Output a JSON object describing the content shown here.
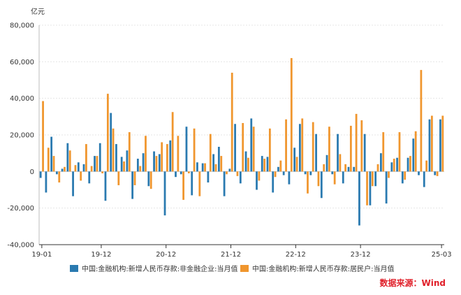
{
  "chart_data": {
    "type": "bar",
    "unit_label": "亿元",
    "y_tick_labels": [
      "80,000",
      "60,000",
      "40,000",
      "20,000",
      "0",
      "-20,000",
      "-40,000"
    ],
    "ylim": [
      -40000,
      80000
    ],
    "x_tick_labels": [
      {
        "label": "19-01",
        "index": 0
      },
      {
        "label": "19-12",
        "index": 11
      },
      {
        "label": "20-12",
        "index": 23
      },
      {
        "label": "21-12",
        "index": 35
      },
      {
        "label": "22-12",
        "index": 47
      },
      {
        "label": "23-12",
        "index": 59
      },
      {
        "label": "25-03",
        "index": 74
      }
    ],
    "categories": [
      "19-01",
      "19-02",
      "19-03",
      "19-04",
      "19-05",
      "19-06",
      "19-07",
      "19-08",
      "19-09",
      "19-10",
      "19-11",
      "19-12",
      "20-01",
      "20-02",
      "20-03",
      "20-04",
      "20-05",
      "20-06",
      "20-07",
      "20-08",
      "20-09",
      "20-10",
      "20-11",
      "20-12",
      "21-01",
      "21-02",
      "21-03",
      "21-04",
      "21-05",
      "21-06",
      "21-07",
      "21-08",
      "21-09",
      "21-10",
      "21-11",
      "21-12",
      "22-01",
      "22-02",
      "22-03",
      "22-04",
      "22-05",
      "22-06",
      "22-07",
      "22-08",
      "22-09",
      "22-10",
      "22-11",
      "22-12",
      "23-01",
      "23-02",
      "23-03",
      "23-04",
      "23-05",
      "23-06",
      "23-07",
      "23-08",
      "23-09",
      "23-10",
      "23-11",
      "23-12",
      "24-01",
      "24-02",
      "24-03",
      "24-04",
      "24-05",
      "24-06",
      "24-07",
      "24-08",
      "24-09",
      "24-10",
      "24-11",
      "24-12",
      "25-01",
      "25-02",
      "25-03"
    ],
    "series": [
      {
        "name": "中国:金融机构:新增人民币存款:非金融企业:当月值",
        "color": "#2a7ab0",
        "values": [
          -3500,
          -11500,
          19000,
          -1500,
          1500,
          15500,
          -13500,
          5000,
          4000,
          -6500,
          8500,
          15500,
          -16000,
          32000,
          15000,
          8000,
          11500,
          -15000,
          7000,
          10000,
          -8000,
          11000,
          9500,
          -24000,
          17000,
          -3000,
          -1500,
          24500,
          -13000,
          5000,
          4500,
          -6000,
          9500,
          13500,
          -13500,
          1500,
          26000,
          -6500,
          11000,
          29000,
          -10000,
          8500,
          8000,
          -11500,
          2500,
          -2000,
          -7000,
          13000,
          26000,
          -1500,
          -2000,
          20500,
          -14500,
          9000,
          -1500,
          20500,
          -6500,
          2500,
          2500,
          -29500,
          20500,
          -18500,
          -8000,
          10000,
          -17500,
          5000,
          7500,
          -6500,
          7500,
          18000,
          -2000,
          -8500,
          28500,
          -2000,
          28500
        ],
        "note_values_are_approximate": true
      },
      {
        "name": "中国:金融机构:新增人民币存款:居民户:当月值",
        "color": "#f0962e",
        "values": [
          38500,
          13000,
          8500,
          -6000,
          2500,
          11500,
          3500,
          -5000,
          15000,
          3000,
          8500,
          -1000,
          42500,
          23500,
          -7500,
          5500,
          21500,
          -7500,
          3000,
          19500,
          -9500,
          8500,
          16000,
          15000,
          32500,
          19500,
          -15500,
          -1000,
          23500,
          -13500,
          4500,
          20500,
          4000,
          8500,
          -1500,
          54000,
          -2500,
          26500,
          7500,
          24500,
          -5000,
          7000,
          23500,
          -3000,
          6000,
          28500,
          62000,
          8000,
          29000,
          -12000,
          27000,
          -8000,
          4000,
          24500,
          -7000,
          9500,
          4000,
          25000,
          31500,
          28000,
          -18500,
          -8000,
          4000,
          21500,
          -3500,
          7000,
          21500,
          -4500,
          8500,
          22000,
          55500,
          6000,
          30500,
          -2500,
          30500
        ],
        "note_values_are_approximate": true
      }
    ],
    "legend_placement": "bottom",
    "grid": {
      "horizontal": true,
      "vertical": false
    },
    "source_label": "数据来源：Wind",
    "source_color": "#e0202a"
  }
}
